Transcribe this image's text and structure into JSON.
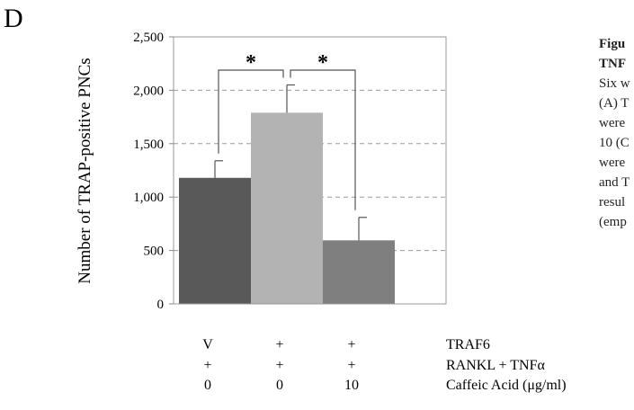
{
  "panel_label": "D",
  "chart_data": {
    "type": "bar",
    "ylabel": "Number of TRAP-positive PNCs",
    "ylim": [
      0,
      2500
    ],
    "y_ticks": [
      "0",
      "500",
      "1,000",
      "1,500",
      "2,000",
      "2,500"
    ],
    "grid": true,
    "bars": [
      {
        "value": 1180,
        "error": 160,
        "color": "#595959"
      },
      {
        "value": 1790,
        "error": 260,
        "color": "#b3b3b3"
      },
      {
        "value": 595,
        "error": 215,
        "color": "#7f7f7f"
      }
    ],
    "conditions": [
      {
        "label": "TRAF6",
        "values": [
          "V",
          "+",
          "+"
        ]
      },
      {
        "label": "RANKL + TNFα",
        "values": [
          "+",
          "+",
          "+"
        ]
      },
      {
        "label": "Caffeic Acid (μg/ml)",
        "values": [
          "0",
          "0",
          "10"
        ]
      }
    ],
    "significance": [
      {
        "from": 0,
        "to": 1,
        "label": "*"
      },
      {
        "from": 1,
        "to": 2,
        "label": "*"
      }
    ]
  },
  "caption_fragments": [
    "Figu",
    "TNF",
    "Six w",
    "(A) T",
    "were",
    "10 (C",
    "were",
    "and T",
    "resul",
    "(emp"
  ]
}
